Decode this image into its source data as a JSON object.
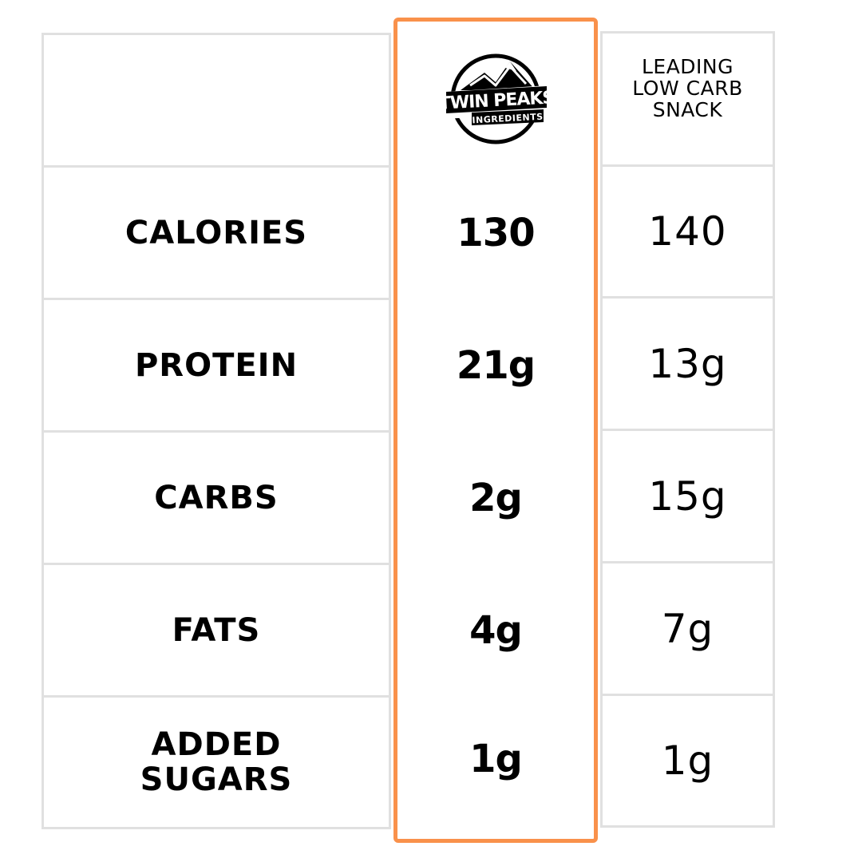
{
  "header": {
    "logo_text_line1": "TWIN PEAKS",
    "logo_text_line2": "INGREDIENTS",
    "competitor_label_lines": [
      "LEADING",
      "LOW CARB",
      "SNACK"
    ]
  },
  "rows": [
    {
      "label_lines": [
        "CALORIES"
      ],
      "twin_peaks": "130",
      "competitor": "140"
    },
    {
      "label_lines": [
        "PROTEIN"
      ],
      "twin_peaks": "21g",
      "competitor": "13g"
    },
    {
      "label_lines": [
        "CARBS"
      ],
      "twin_peaks": "2g",
      "competitor": "15g"
    },
    {
      "label_lines": [
        "FATS"
      ],
      "twin_peaks": "4g",
      "competitor": "7g"
    },
    {
      "label_lines": [
        "ADDED",
        "SUGARS"
      ],
      "twin_peaks": "1g",
      "competitor": "1g"
    }
  ],
  "colors": {
    "highlight_border": "#f9914b",
    "grid_border": "#e0e0e0",
    "text": "#000000"
  }
}
